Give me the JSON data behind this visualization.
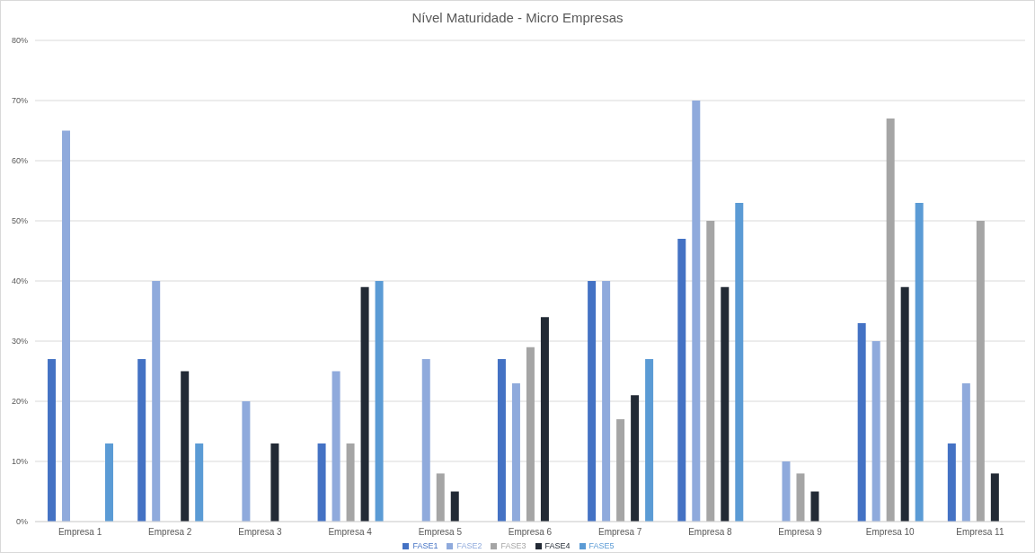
{
  "chart_data": {
    "type": "bar",
    "title": "Nível Maturidade - Micro Empresas",
    "categories": [
      "Empresa 1",
      "Empresa 2",
      "Empresa 3",
      "Empresa 4",
      "Empresa 5",
      "Empresa 6",
      "Empresa 7",
      "Empresa 8",
      "Empresa 9",
      "Empresa 10",
      "Empresa 11"
    ],
    "series": [
      {
        "name": "FASE1",
        "color": "#4472c4",
        "values": [
          27,
          27,
          0,
          13,
          0,
          27,
          40,
          47,
          0,
          33,
          13
        ]
      },
      {
        "name": "FASE2",
        "color": "#8faadc",
        "values": [
          65,
          40,
          20,
          25,
          27,
          23,
          40,
          70,
          10,
          30,
          23
        ]
      },
      {
        "name": "FASE3",
        "color": "#a5a5a5",
        "values": [
          0,
          0,
          0,
          13,
          8,
          29,
          17,
          50,
          8,
          67,
          50
        ]
      },
      {
        "name": "FASE4",
        "color": "#222a35",
        "values": [
          0,
          25,
          13,
          39,
          5,
          34,
          21,
          39,
          5,
          39,
          8
        ]
      },
      {
        "name": "FASE5",
        "color": "#5b9bd5",
        "values": [
          13,
          13,
          0,
          40,
          0,
          0,
          27,
          53,
          0,
          53,
          0
        ]
      }
    ],
    "ylim": [
      0,
      80
    ],
    "yticks": [
      {
        "value": 0,
        "label": "0%"
      },
      {
        "value": 10,
        "label": "10%"
      },
      {
        "value": 20,
        "label": "20%"
      },
      {
        "value": 30,
        "label": "30%"
      },
      {
        "value": 40,
        "label": "40%"
      },
      {
        "value": 50,
        "label": "50%"
      },
      {
        "value": 60,
        "label": "60%"
      },
      {
        "value": 70,
        "label": "70%"
      },
      {
        "value": 80,
        "label": "80%"
      }
    ],
    "grid": "y",
    "legend": "bottom"
  }
}
